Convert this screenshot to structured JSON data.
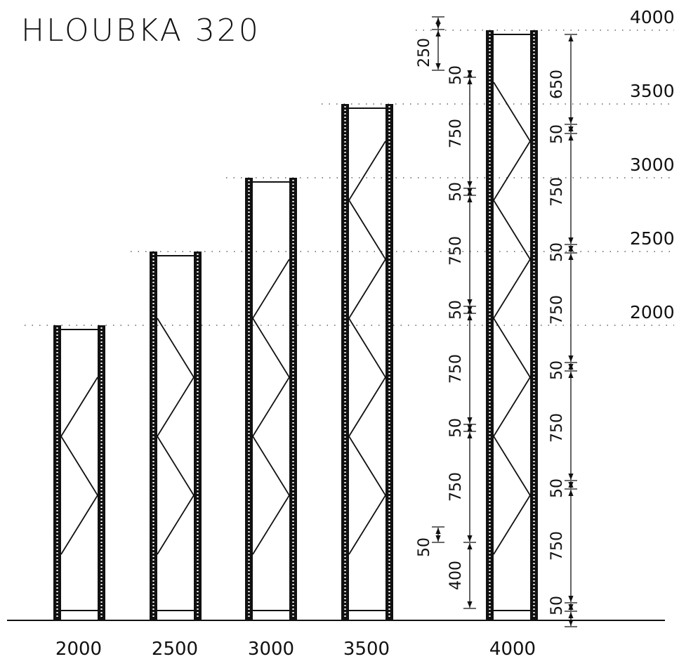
{
  "title": "HLOUBKA 320",
  "height_levels": [
    "2000",
    "2500",
    "3000",
    "3500",
    "4000"
  ],
  "frames": [
    {
      "height_label": "2000",
      "height_mm": 2000
    },
    {
      "height_label": "2500",
      "height_mm": 2500
    },
    {
      "height_label": "3000",
      "height_mm": 3000
    },
    {
      "height_label": "3500",
      "height_mm": 3500
    },
    {
      "height_label": "4000",
      "height_mm": 4000
    }
  ],
  "left_dimension_chain": [
    "250",
    "50",
    "750",
    "50",
    "750",
    "50",
    "750",
    "50",
    "750",
    "50",
    "400"
  ],
  "right_dimension_chain": [
    "650",
    "50",
    "750",
    "50",
    "750",
    "50",
    "750",
    "50",
    "750",
    "50"
  ],
  "colors": {
    "line": "#111111",
    "dots": "#444444",
    "background": "#ffffff"
  }
}
